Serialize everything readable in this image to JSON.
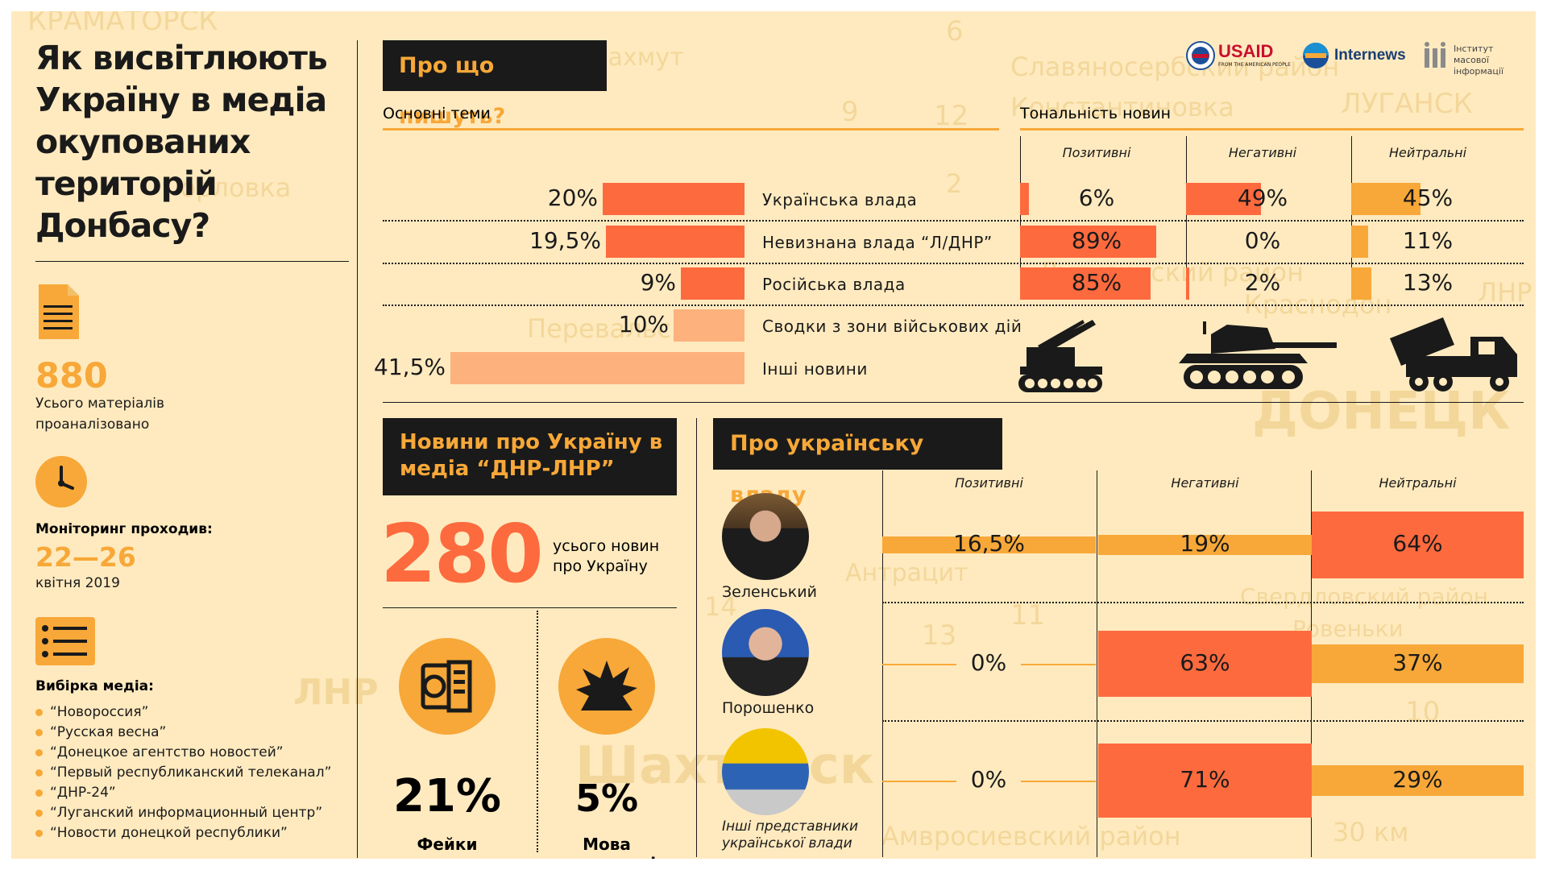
{
  "title": "Як висвітлюють Україну в медіа окупованих територій Донбасу?",
  "colors": {
    "accent": "#f7a838",
    "bar_red": "#fd6a3e",
    "bar_light": "#fdb17c",
    "background": "#ffeabf",
    "dark": "#1a1a1a"
  },
  "map_labels": [
    "КРАМАТОРСК",
    "Бахмут",
    "Славяносербский район",
    "ЛУГАНСК",
    "Константиновка",
    "Горловка",
    "Перевальск",
    "Лутугинский район",
    "Краснодон",
    "ЛНР",
    "ДОНЕЦК",
    "ЛНР",
    "Шахтёрск",
    "Антрацит",
    "Свердловский район",
    "Ровеньки",
    "Амвросиевский район",
    "30 км",
    "6",
    "9",
    "12",
    "2",
    "13",
    "11",
    "14",
    "10"
  ],
  "sidebar": {
    "total_count": "880",
    "total_label": "Усього матеріалів проаналізовано",
    "monitoring_label": "Моніторинг проходив:",
    "monitoring_dates": "22—26",
    "monitoring_month": "квітня 2019",
    "sample_label": "Вибірка медіа:",
    "media": [
      "“Новороссия”",
      "“Русская весна”",
      "“Донецкое агентство новостей”",
      "“Первый республиканский телеканал”",
      "“ДНР-24”",
      "“Луганский информационный центр”",
      "“Новости донецкой республики”"
    ],
    "icons": [
      "document-icon",
      "clock-icon",
      "list-icon"
    ]
  },
  "logos": {
    "usaid": "USAID",
    "usaid_sub": "FROM THE AMERICAN PEOPLE",
    "internews": "Internews",
    "imi": "Інститут масової інформації"
  },
  "topics_section": {
    "header": "Про що пишуть?",
    "subheader_left": "Основні теми",
    "subheader_right": "Тональність новин",
    "columns": [
      "Позитивні",
      "Негативні",
      "Нейтральні"
    ],
    "rows": [
      {
        "label": "Українська влада",
        "pct": "20%",
        "value": 20,
        "tone": [
          6,
          49,
          45
        ],
        "tone_labels": [
          "6%",
          "49%",
          "45%"
        ]
      },
      {
        "label": "Невизнана влада “Л/ДНР”",
        "pct": "19,5%",
        "value": 19.5,
        "tone": [
          89,
          0,
          11
        ],
        "tone_labels": [
          "89%",
          "0%",
          "11%"
        ]
      },
      {
        "label": "Російська влада",
        "pct": "9%",
        "value": 9,
        "tone": [
          85,
          2,
          13
        ],
        "tone_labels": [
          "85%",
          "2%",
          "13%"
        ]
      },
      {
        "label": "Сводки з зони військових дій",
        "pct": "10%",
        "value": 10
      },
      {
        "label": "Інші новини",
        "pct": "41,5%",
        "value": 41.5
      }
    ],
    "vehicle_icons": [
      "artillery-icon",
      "tank-icon",
      "rocket-launcher-icon"
    ]
  },
  "ukraine_news": {
    "header": "Новини про Україну в медіа “ДНР-ЛНР”",
    "count": "280",
    "count_label": "усього новин про Україну",
    "fakes_pct": "21%",
    "fakes_label": "Фейки",
    "hate_pct": "5%",
    "hate_label": "Мова ворожнечі"
  },
  "ukr_authority": {
    "header": "Про українську владу",
    "columns": [
      "Позитивні",
      "Негативні",
      "Нейтральні"
    ],
    "people": [
      {
        "name": "Зеленський",
        "values": [
          16.5,
          19,
          64
        ],
        "labels": [
          "16,5%",
          "19%",
          "64%"
        ]
      },
      {
        "name": "Порошенко",
        "values": [
          0,
          63,
          37
        ],
        "labels": [
          "0%",
          "63%",
          "37%"
        ]
      },
      {
        "name": "Інші представники української влади",
        "values": [
          0,
          71,
          29
        ],
        "labels": [
          "0%",
          "71%",
          "29%"
        ]
      }
    ]
  }
}
